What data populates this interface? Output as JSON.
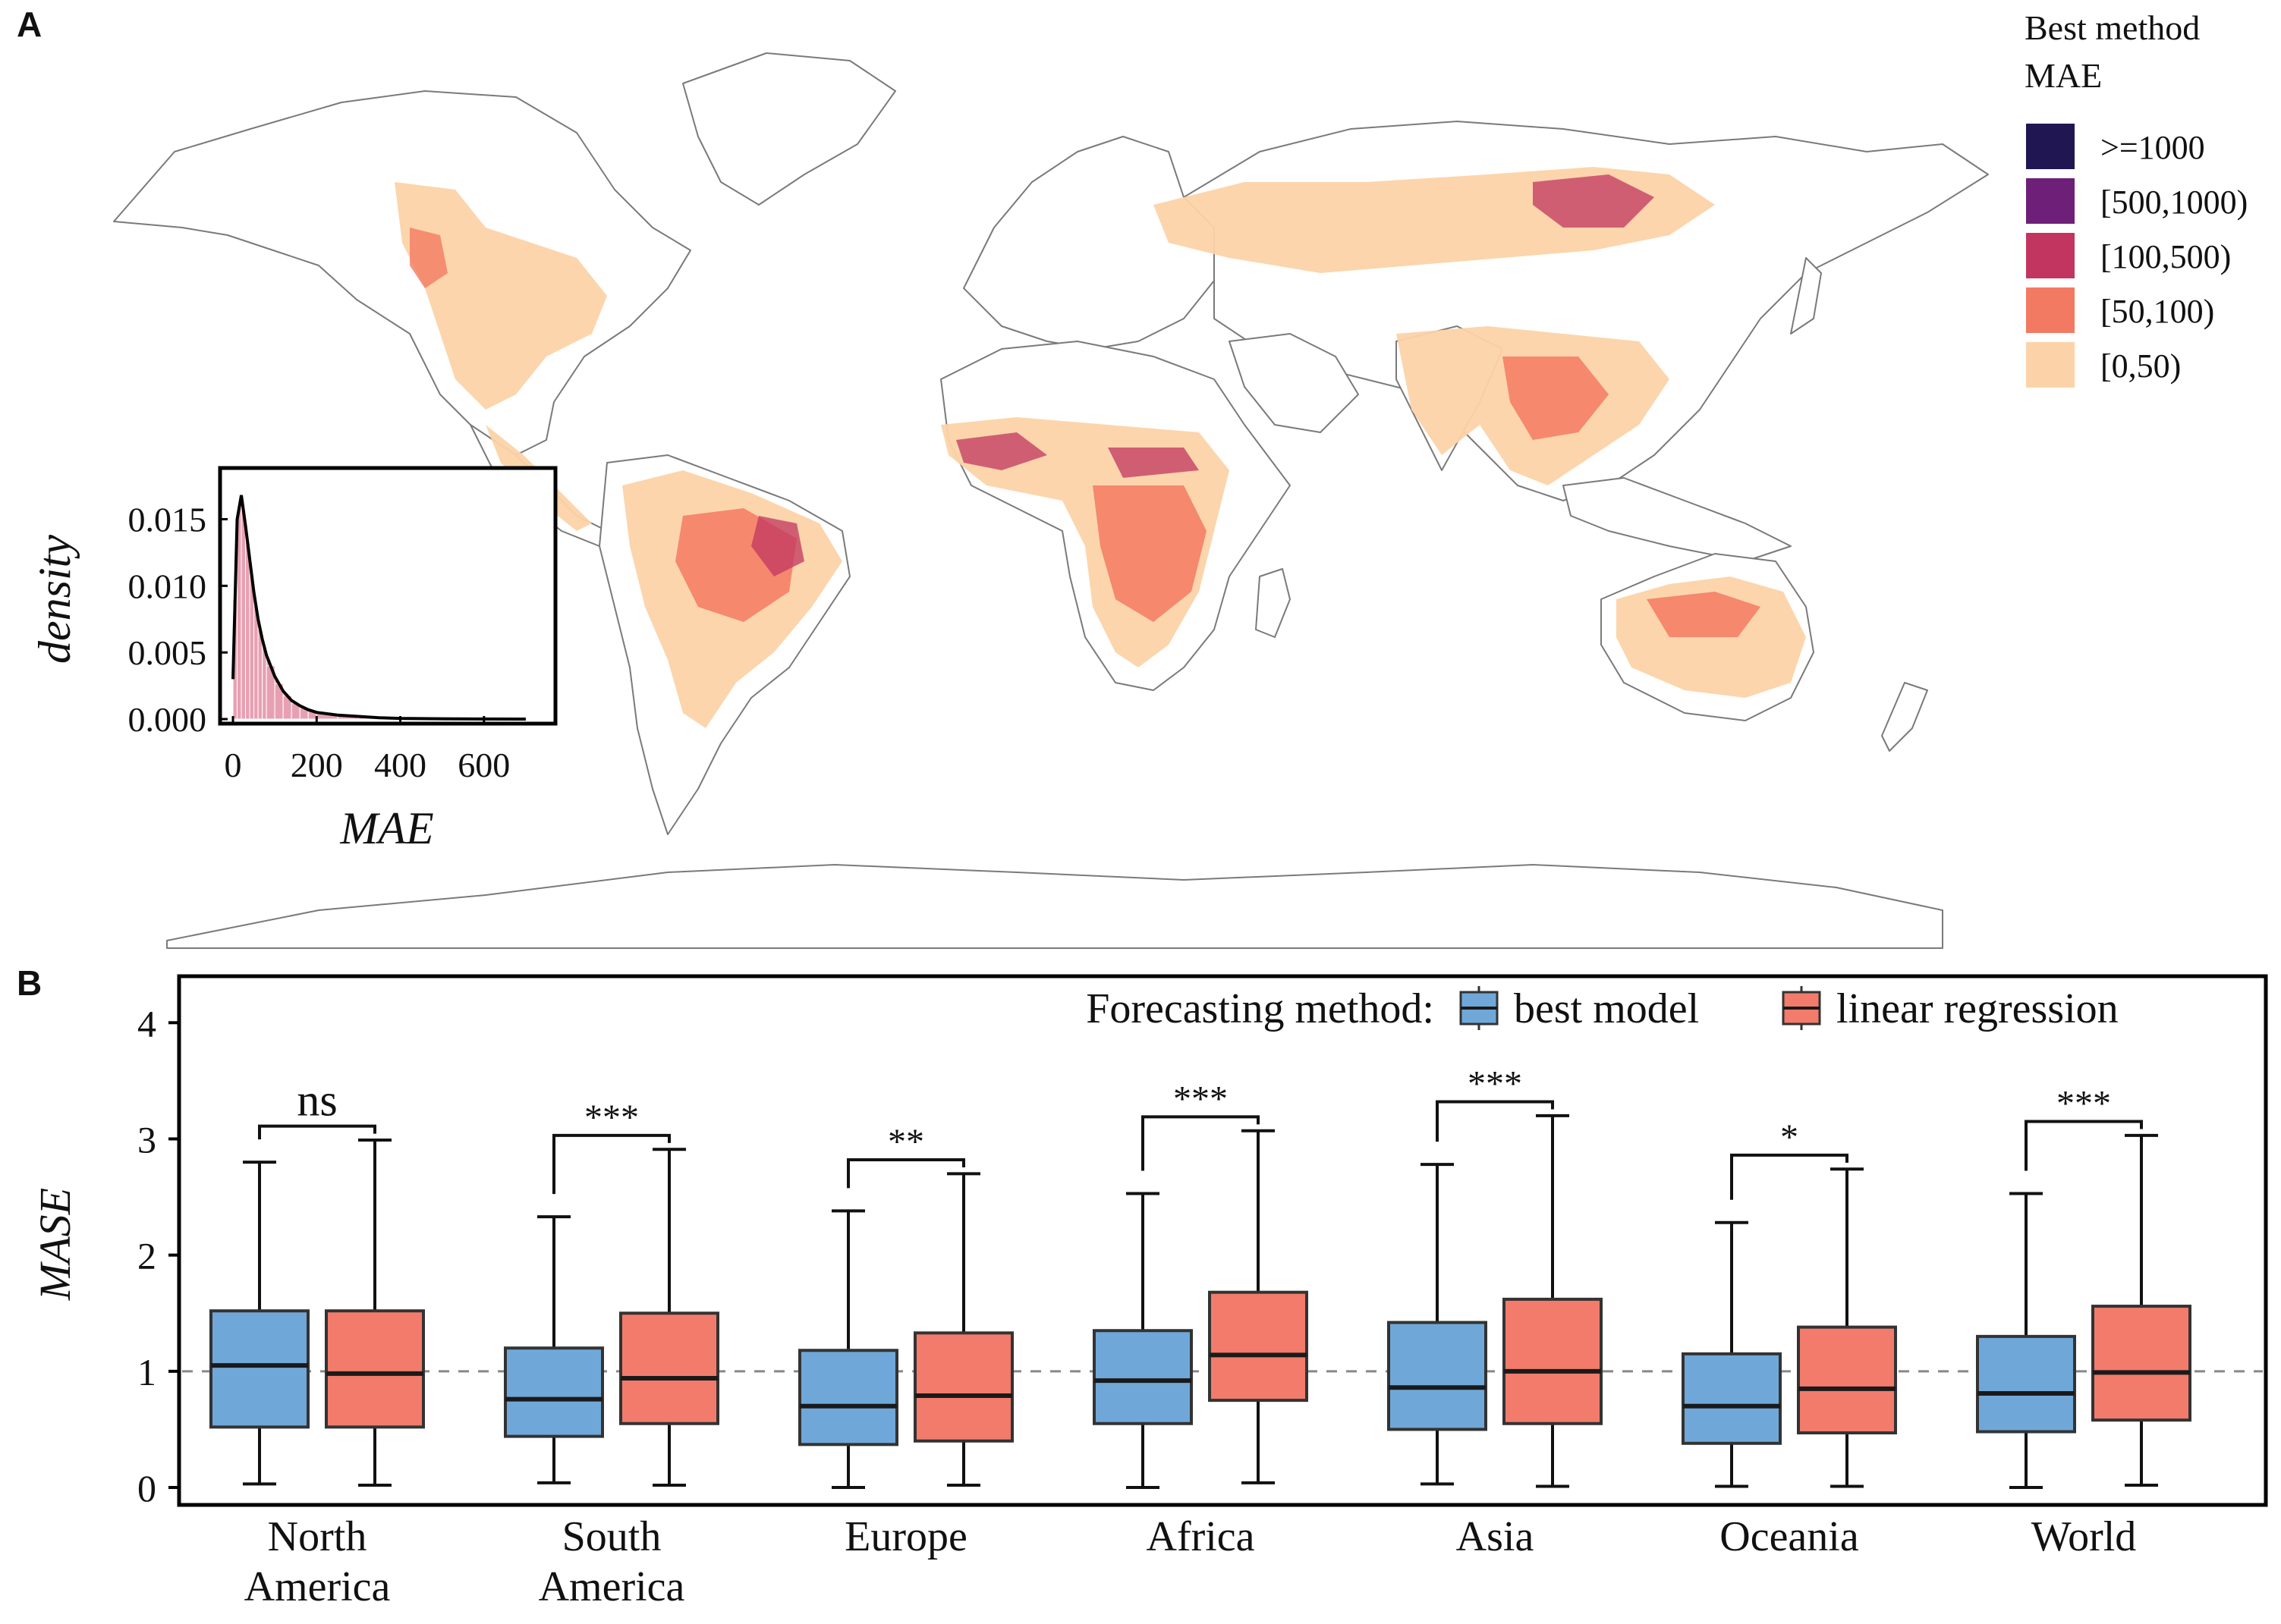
{
  "panels": {
    "a_label": "A",
    "b_label": "B"
  },
  "map_legend": {
    "title_line1": "Best method",
    "title_line2": "MAE",
    "items": [
      {
        "label": ">=1000",
        "color": "#1f1652"
      },
      {
        "label": "[500,1000)",
        "color": "#6e1f78"
      },
      {
        "label": "[100,500)",
        "color": "#c23560"
      },
      {
        "label": "[50,100)",
        "color": "#f37a62"
      },
      {
        "label": "[0,50)",
        "color": "#fcd3a8"
      }
    ]
  },
  "inset": {
    "xlabel": "MAE",
    "ylabel": "density",
    "x_ticks": [
      "0",
      "200",
      "400",
      "600"
    ],
    "y_ticks": [
      "0.000",
      "0.005",
      "0.010",
      "0.015"
    ]
  },
  "chart_data": [
    {
      "type": "area",
      "panel": "A-inset",
      "xlabel": "MAE",
      "ylabel": "density",
      "xlim": [
        -20,
        760
      ],
      "ylim": [
        0,
        0.0185
      ],
      "x": [
        0,
        10,
        20,
        30,
        40,
        50,
        60,
        70,
        80,
        100,
        120,
        140,
        160,
        180,
        200,
        250,
        300,
        350,
        400,
        500,
        600,
        700
      ],
      "y": [
        0.003,
        0.015,
        0.0168,
        0.0145,
        0.012,
        0.0095,
        0.0075,
        0.006,
        0.0048,
        0.0032,
        0.0021,
        0.0014,
        0.001,
        0.0007,
        0.0005,
        0.0003,
        0.0002,
        0.0001,
        5e-05,
        2e-05,
        1e-05,
        0.0
      ],
      "fill_color": "#e7a0b2",
      "line_color": "#000000"
    },
    {
      "type": "box",
      "panel": "B",
      "ylabel": "MASE",
      "ylim": [
        -0.15,
        4.4
      ],
      "y_ticks": [
        "0",
        "1",
        "2",
        "3",
        "4"
      ],
      "reference_line": 1,
      "legend_title": "Forecasting method:",
      "legend_position": "top-right",
      "series_colors": {
        "best model": "#6fa8d8",
        "linear regression": "#f27b6b"
      },
      "categories": [
        {
          "label": [
            "North",
            "America"
          ],
          "sig": "ns",
          "best_model": {
            "whislo": 0.03,
            "q1": 0.52,
            "med": 1.05,
            "q3": 1.52,
            "whishi": 2.8
          },
          "linear_regression": {
            "whislo": 0.02,
            "q1": 0.52,
            "med": 0.98,
            "q3": 1.52,
            "whishi": 2.99
          }
        },
        {
          "label": [
            "South",
            "America"
          ],
          "sig": "***",
          "best_model": {
            "whislo": 0.04,
            "q1": 0.44,
            "med": 0.76,
            "q3": 1.2,
            "whishi": 2.33
          },
          "linear_regression": {
            "whislo": 0.02,
            "q1": 0.55,
            "med": 0.94,
            "q3": 1.5,
            "whishi": 2.91
          }
        },
        {
          "label": [
            "Europe"
          ],
          "sig": "**",
          "best_model": {
            "whislo": 0.0,
            "q1": 0.37,
            "med": 0.7,
            "q3": 1.18,
            "whishi": 2.38
          },
          "linear_regression": {
            "whislo": 0.02,
            "q1": 0.4,
            "med": 0.79,
            "q3": 1.33,
            "whishi": 2.7
          }
        },
        {
          "label": [
            "Africa"
          ],
          "sig": "***",
          "best_model": {
            "whislo": 0.0,
            "q1": 0.55,
            "med": 0.92,
            "q3": 1.35,
            "whishi": 2.53
          },
          "linear_regression": {
            "whislo": 0.04,
            "q1": 0.75,
            "med": 1.14,
            "q3": 1.68,
            "whishi": 3.07
          }
        },
        {
          "label": [
            "Asia"
          ],
          "sig": "***",
          "best_model": {
            "whislo": 0.03,
            "q1": 0.5,
            "med": 0.86,
            "q3": 1.42,
            "whishi": 2.78
          },
          "linear_regression": {
            "whislo": 0.01,
            "q1": 0.55,
            "med": 1.0,
            "q3": 1.62,
            "whishi": 3.2
          }
        },
        {
          "label": [
            "Oceania"
          ],
          "sig": "*",
          "best_model": {
            "whislo": 0.01,
            "q1": 0.38,
            "med": 0.7,
            "q3": 1.15,
            "whishi": 2.28
          },
          "linear_regression": {
            "whislo": 0.01,
            "q1": 0.47,
            "med": 0.85,
            "q3": 1.38,
            "whishi": 2.74
          }
        },
        {
          "label": [
            "World"
          ],
          "sig": "***",
          "best_model": {
            "whislo": 0.0,
            "q1": 0.48,
            "med": 0.81,
            "q3": 1.3,
            "whishi": 2.53
          },
          "linear_regression": {
            "whislo": 0.02,
            "q1": 0.58,
            "med": 0.99,
            "q3": 1.56,
            "whishi": 3.03
          }
        }
      ],
      "legend": [
        {
          "name": "best model",
          "color": "#6fa8d8"
        },
        {
          "name": "linear regression",
          "color": "#f27b6b"
        }
      ]
    }
  ]
}
